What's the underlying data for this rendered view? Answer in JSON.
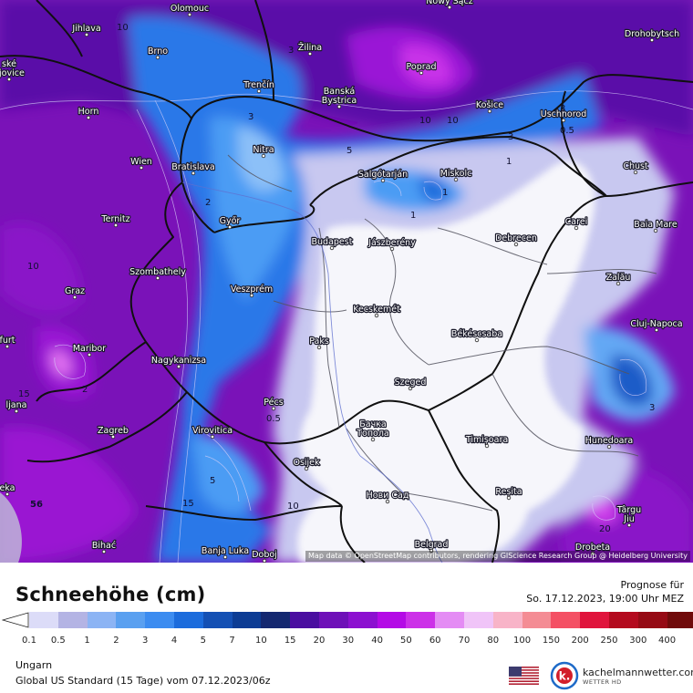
{
  "map": {
    "attribution": "Map data © OpenStreetMap contributors, rendering GIScience Research Group @ Heidelberg University",
    "cities": [
      {
        "name": "Olomouc"
      },
      {
        "name": "Nowy Sącz"
      },
      {
        "name": "Jihlava"
      },
      {
        "name": "Žilina"
      },
      {
        "name": "Drohobytsch"
      },
      {
        "name": "Brno"
      },
      {
        "name": "Poprad"
      },
      {
        "name": "ské\nějovice"
      },
      {
        "name": "Trenčín"
      },
      {
        "name": "Banská\nBystrica"
      },
      {
        "name": "Košice"
      },
      {
        "name": "Horn"
      },
      {
        "name": "Uschhorod"
      },
      {
        "name": "Nitra"
      },
      {
        "name": "Wien"
      },
      {
        "name": "Bratislava"
      },
      {
        "name": "Salgótarján"
      },
      {
        "name": "Miskolc"
      },
      {
        "name": "Chust"
      },
      {
        "name": "Ternitz"
      },
      {
        "name": "Győr"
      },
      {
        "name": "Carei"
      },
      {
        "name": "Baia Mare"
      },
      {
        "name": "Budapest"
      },
      {
        "name": "Jászberény"
      },
      {
        "name": "Debrecen"
      },
      {
        "name": "Szombathely"
      },
      {
        "name": "Zalău"
      },
      {
        "name": "Graz"
      },
      {
        "name": "Veszprém"
      },
      {
        "name": "Kecskemét"
      },
      {
        "name": "Cluj-Napoca"
      },
      {
        "name": "furt"
      },
      {
        "name": "Paks"
      },
      {
        "name": "Békéscsaba"
      },
      {
        "name": "Maribor"
      },
      {
        "name": "Nagykanizsa"
      },
      {
        "name": "Szeged"
      },
      {
        "name": "Pécs"
      },
      {
        "name": "ljana"
      },
      {
        "name": "Virovitica"
      },
      {
        "name": "Бачка\nТопола"
      },
      {
        "name": "Zagreb"
      },
      {
        "name": "Timișoara"
      },
      {
        "name": "Hunedoara"
      },
      {
        "name": "Osijek"
      },
      {
        "name": "Reșita"
      },
      {
        "name": "Нови Сад"
      },
      {
        "name": "Târgu\nJiu"
      },
      {
        "name": "Bihać"
      },
      {
        "name": "Banja Luka"
      },
      {
        "name": "Doboj"
      },
      {
        "name": "Belgrad"
      },
      {
        "name": "Drobeta"
      },
      {
        "name": "eka"
      }
    ],
    "values": [
      "10",
      "3",
      "3",
      "5",
      "10",
      "10",
      "3",
      "1",
      "3",
      "0.5",
      "2",
      "2",
      "1",
      "1",
      "0.5",
      "3",
      "56",
      "5",
      "15",
      "10",
      "15",
      "10",
      "20"
    ]
  },
  "footer": {
    "title": "Schneehöhe (cm)",
    "forecast_label": "Prognose für",
    "forecast_time": "So. 17.12.2023, 19:00 Uhr MEZ",
    "region": "Ungarn",
    "model_line": "Global US Standard (15 Tage) vom  07.12.2023/06z",
    "logo_name": "kachelmannwetter.com",
    "logo_sub": "WETTER HD",
    "logo_icon": "k."
  },
  "legend": {
    "labels": [
      "0.1",
      "0.5",
      "1",
      "2",
      "3",
      "4",
      "5",
      "7",
      "10",
      "15",
      "20",
      "30",
      "40",
      "50",
      "60",
      "70",
      "80",
      "100",
      "150",
      "200",
      "250",
      "300",
      "400"
    ],
    "colors": [
      "#dcdcf8",
      "#b4b4e4",
      "#8cb4f4",
      "#5aa0f0",
      "#3c8cf0",
      "#1c6cdc",
      "#1450b4",
      "#0c3c94",
      "#142870",
      "#4a0ea0",
      "#6e10b8",
      "#8c10d0",
      "#b40ae6",
      "#cc30e8",
      "#e48cf4",
      "#f0c4f8",
      "#f8b4c8",
      "#f48c94",
      "#f45064",
      "#e0143c",
      "#b40a1e",
      "#960a14",
      "#700a0a",
      "#4a0505"
    ]
  },
  "flag": {
    "icon": "us-flag-icon"
  },
  "colors": {
    "white_area": "#f5f5fa",
    "border": "#101010"
  }
}
